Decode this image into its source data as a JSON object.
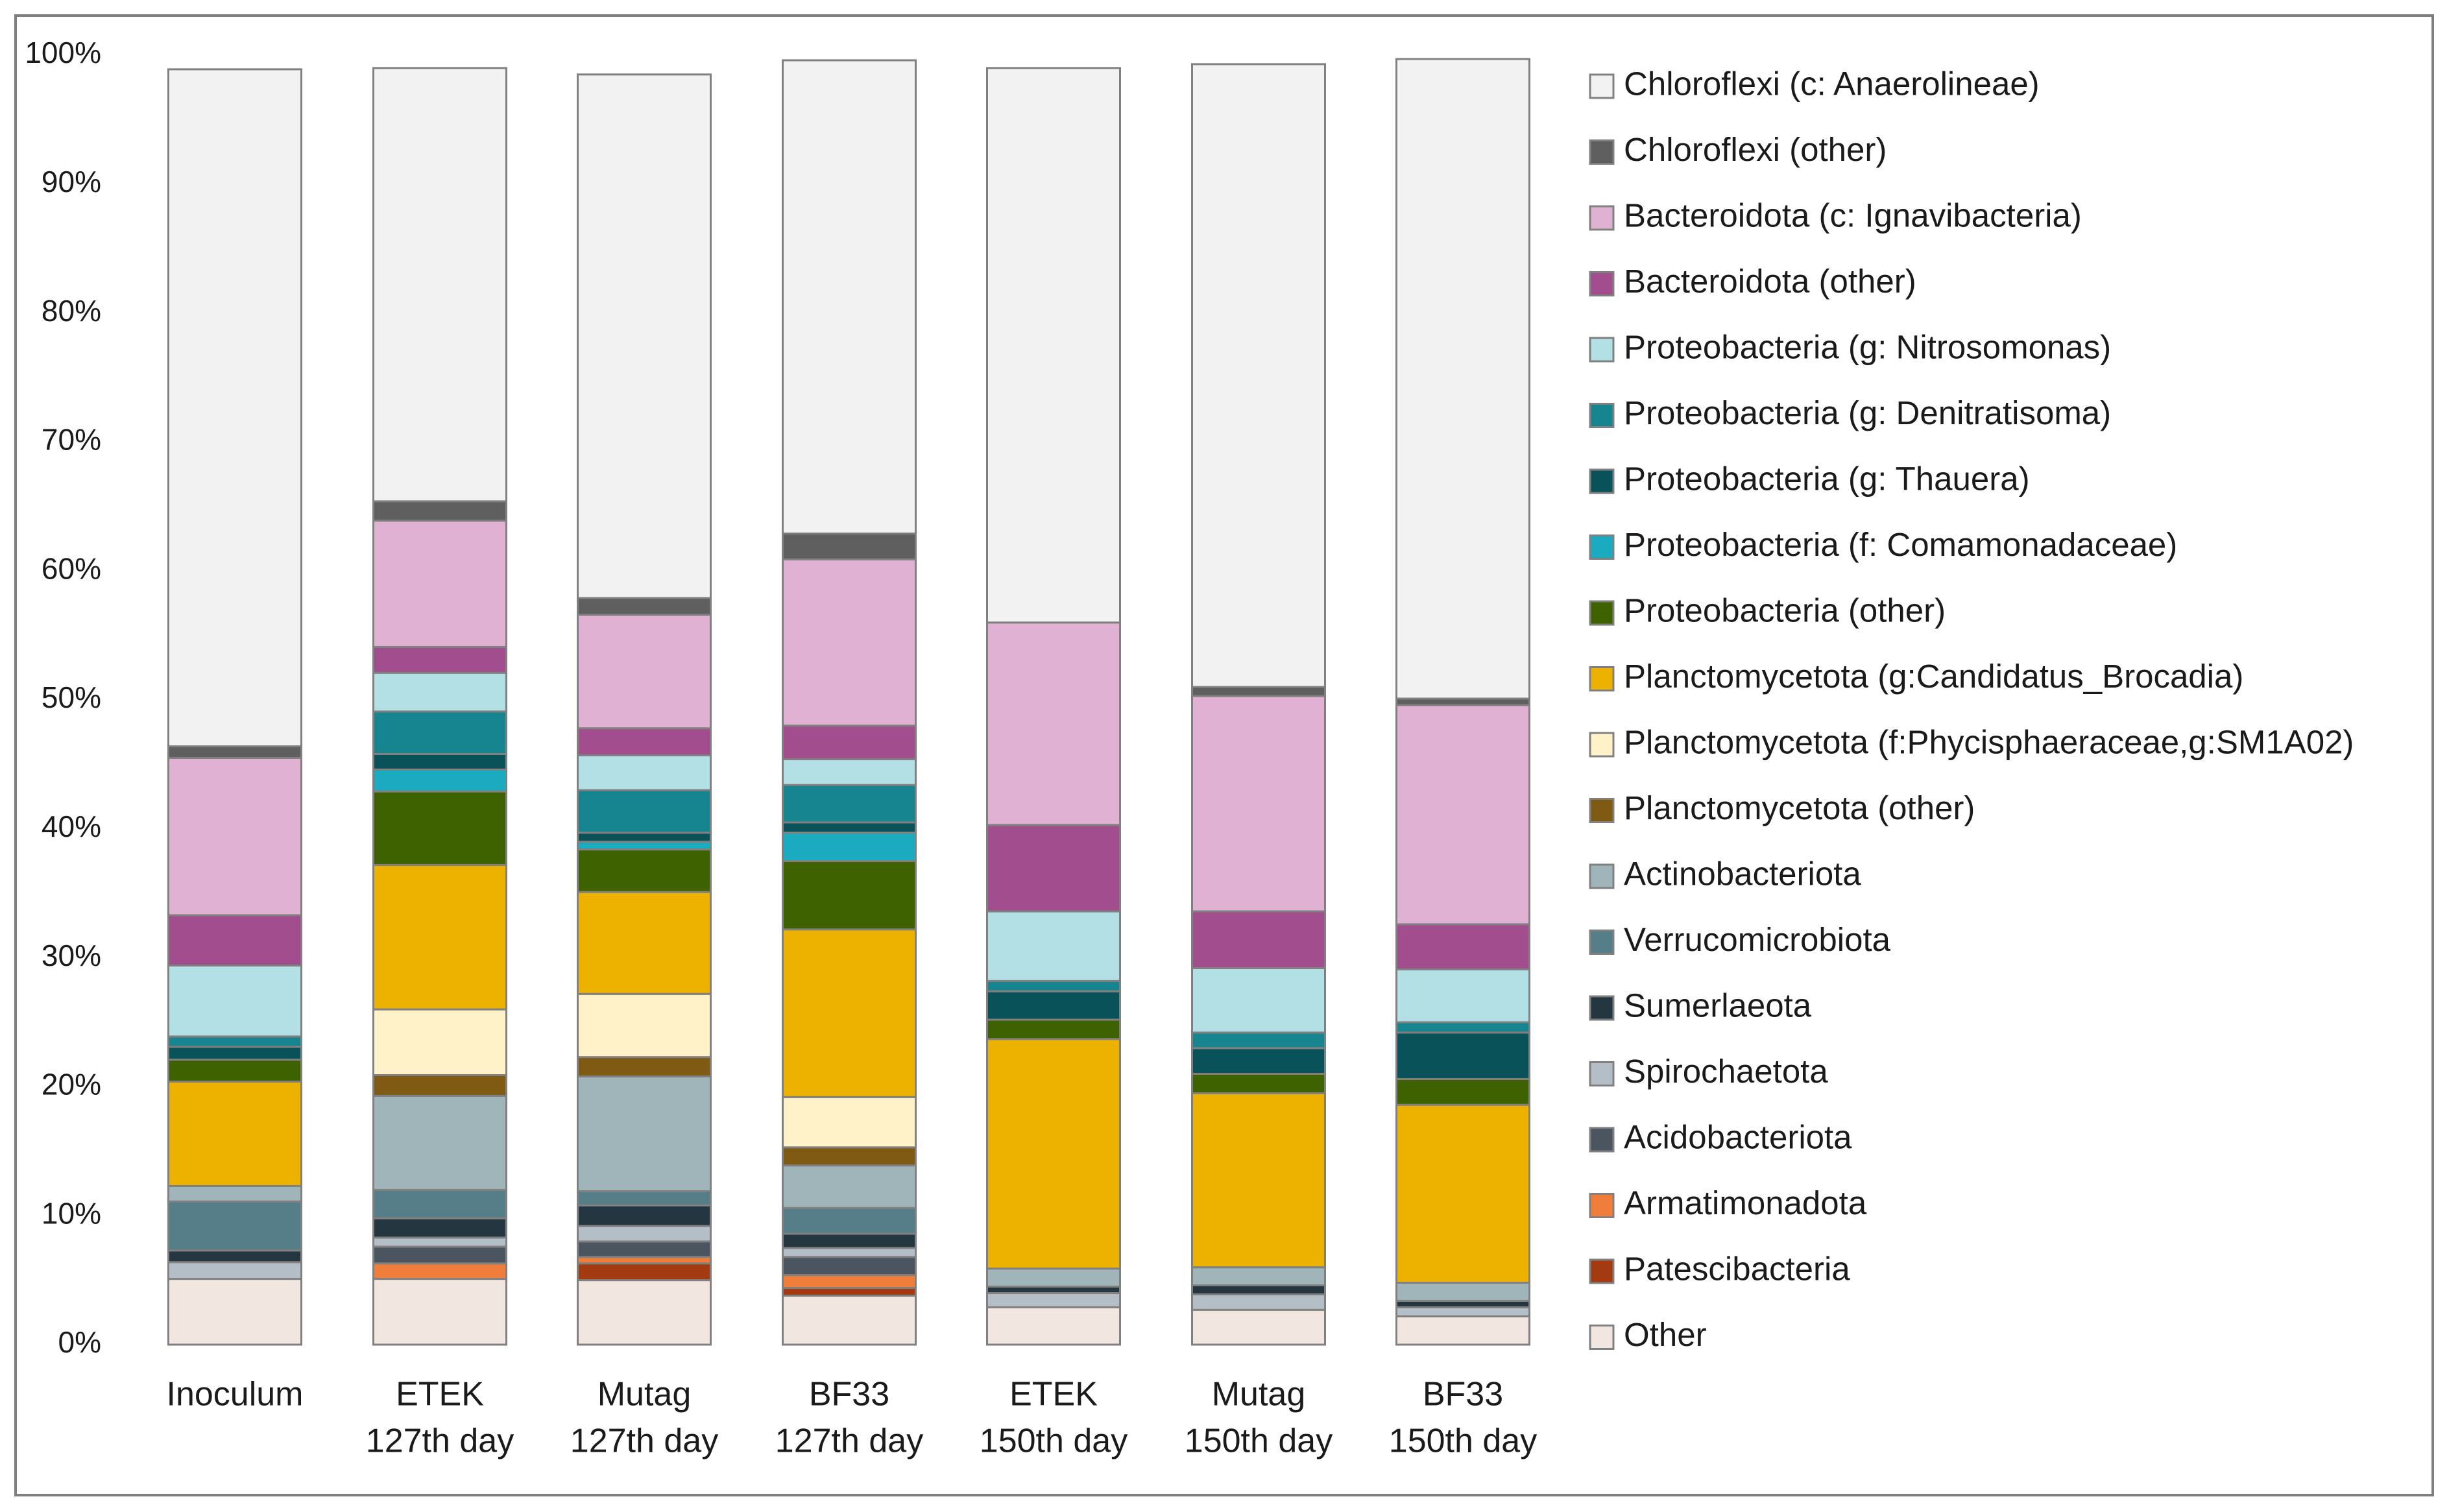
{
  "chart_data": {
    "type": "bar",
    "stacked": true,
    "percent": true,
    "title": "",
    "xlabel": "",
    "ylabel": "",
    "ylim": [
      0,
      100
    ],
    "yticks": [
      "0%",
      "10%",
      "20%",
      "30%",
      "40%",
      "50%",
      "60%",
      "70%",
      "80%",
      "90%",
      "100%"
    ],
    "categories": [
      [
        "Inoculum"
      ],
      [
        "ETEK",
        "127th day"
      ],
      [
        "Mutag",
        "127th day"
      ],
      [
        "BF33",
        "127th day"
      ],
      [
        "ETEK",
        "150th day"
      ],
      [
        "Mutag",
        "150th day"
      ],
      [
        "BF33",
        "150th day"
      ]
    ],
    "legend_position": "right",
    "series": [
      {
        "name": "Other",
        "color": "#F2E6E0",
        "values": [
          5.1,
          5.1,
          5.0,
          3.8,
          2.9,
          2.7,
          2.2
        ]
      },
      {
        "name": "Patescibacteria",
        "color": "#A33A12",
        "values": [
          0.0,
          0.0,
          1.3,
          0.6,
          0.0,
          0.0,
          0.0
        ]
      },
      {
        "name": "Armatimonadota",
        "color": "#F07D3A",
        "values": [
          0.0,
          1.2,
          0.5,
          1.0,
          0.0,
          0.0,
          0.0
        ]
      },
      {
        "name": "Acidobacteriota",
        "color": "#4A5560",
        "values": [
          0.0,
          1.3,
          1.2,
          1.4,
          0.0,
          0.0,
          0.0
        ]
      },
      {
        "name": "Spirochaetota",
        "color": "#B4BEC6",
        "values": [
          1.3,
          0.7,
          1.2,
          0.7,
          1.1,
          1.2,
          0.7
        ]
      },
      {
        "name": "Sumerlaeota",
        "color": "#243640",
        "values": [
          0.9,
          1.5,
          1.6,
          1.1,
          0.5,
          0.7,
          0.5
        ]
      },
      {
        "name": "Verrucomicrobiota",
        "color": "#567E88",
        "values": [
          3.8,
          2.2,
          1.1,
          2.0,
          0.0,
          0.0,
          0.0
        ]
      },
      {
        "name": "Actinobacteriota",
        "color": "#9FB5BA",
        "values": [
          1.2,
          7.3,
          8.9,
          3.3,
          1.4,
          1.4,
          1.4
        ]
      },
      {
        "name": "Planctomycetota (other)",
        "color": "#7E5A12",
        "values": [
          0.0,
          1.6,
          1.5,
          1.4,
          0.0,
          0.0,
          0.0
        ]
      },
      {
        "name": "Planctomycetota (f:Phycisphaeraceae,g:SM1A02)",
        "color": "#FFF2C8",
        "values": [
          0.0,
          5.1,
          4.9,
          3.9,
          0.0,
          0.0,
          0.0
        ]
      },
      {
        "name": "Planctomycetota (g:Candidatus_Brocadia)",
        "color": "#EDB100",
        "values": [
          8.1,
          11.2,
          7.9,
          13.0,
          17.8,
          13.5,
          13.8
        ]
      },
      {
        "name": "Proteobacteria (other)",
        "color": "#3F6200",
        "values": [
          1.7,
          5.7,
          3.3,
          5.3,
          1.5,
          1.5,
          2.0
        ]
      },
      {
        "name": "Proteobacteria (f: Comamonadaceae)",
        "color": "#1AABC0",
        "values": [
          0.0,
          1.7,
          0.6,
          2.2,
          0.0,
          0.0,
          0.0
        ]
      },
      {
        "name": "Proteobacteria (g: Thauera)",
        "color": "#0A525A",
        "values": [
          1.0,
          1.2,
          0.7,
          0.8,
          2.2,
          2.0,
          3.6
        ]
      },
      {
        "name": "Proteobacteria (g: Denitratisoma)",
        "color": "#17858F",
        "values": [
          0.8,
          3.3,
          3.3,
          2.9,
          0.8,
          1.2,
          0.8
        ]
      },
      {
        "name": "Proteobacteria (g: Nitrosomonas)",
        "color": "#B2E0E4",
        "values": [
          5.5,
          3.0,
          2.7,
          2.0,
          5.4,
          5.0,
          4.1
        ]
      },
      {
        "name": "Bacteroidota (other)",
        "color": "#A24D8E",
        "values": [
          3.9,
          2.0,
          2.1,
          2.6,
          6.7,
          4.4,
          3.5
        ]
      },
      {
        "name": "Bacteroidota (c: Ignavibacteria)",
        "color": "#E0B1D2",
        "values": [
          12.2,
          9.8,
          8.8,
          12.9,
          15.7,
          16.7,
          17.0
        ]
      },
      {
        "name": "Chloroflexi (other)",
        "color": "#5F5F5F",
        "values": [
          0.9,
          1.5,
          1.3,
          2.0,
          0.0,
          0.7,
          0.5
        ]
      },
      {
        "name": "Chloroflexi (c: Anaerolineae)",
        "color": "#F2F2F2",
        "values": [
          52.5,
          33.6,
          40.6,
          36.7,
          43.0,
          48.3,
          49.6
        ]
      }
    ]
  }
}
